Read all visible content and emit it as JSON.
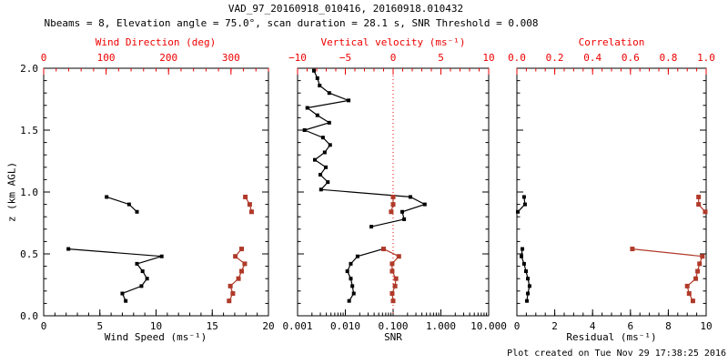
{
  "title": "VAD_97_20160918_010416, 20160918.010432",
  "subtitle": "Nbeams = 8, Elevation angle = 75.0°, scan duration = 28.1 s, SNR Threshold = 0.008",
  "footer": "Plot created on Tue Nov 29 17:38:25 2016",
  "colors": {
    "black": "#000000",
    "red_axis": "#ee0000",
    "red_data": "#b03a2a",
    "background": "#ffffff"
  },
  "y_axis": {
    "label": "z (km AGL)",
    "range": [
      0,
      2
    ],
    "major_ticks": [
      0.0,
      0.5,
      1.0,
      1.5,
      2.0
    ],
    "tick_labels": [
      "0.0",
      "0.5",
      "1.0",
      "1.5",
      "2.0"
    ],
    "minor_step": 0.1
  },
  "chart_data": [
    {
      "id": "wind-panel",
      "type": "scatter",
      "bottom_axis": {
        "label": "Wind Speed (ms⁻¹)",
        "scale": "linear",
        "range": [
          0,
          20
        ],
        "major_ticks": [
          0,
          5,
          10,
          15,
          20
        ],
        "tick_labels": [
          "0",
          "5",
          "10",
          "15",
          "20"
        ],
        "minor_step": 1
      },
      "top_axis": {
        "label": "Wind Direction (deg)",
        "scale": "linear",
        "range": [
          0,
          360
        ],
        "major_ticks": [
          0,
          100,
          200,
          300
        ],
        "tick_labels": [
          "0",
          "100",
          "200",
          "300"
        ],
        "minor_step": 20
      },
      "series": [
        {
          "name": "wind-speed",
          "axis": "bottom",
          "color": "black",
          "segments": [
            {
              "z": [
                0.96,
                0.9,
                0.84
              ],
              "values": [
                5.6,
                7.6,
                8.3
              ]
            },
            {
              "z": [
                0.54,
                0.48,
                0.42,
                0.36,
                0.3,
                0.24,
                0.18,
                0.12
              ],
              "values": [
                2.2,
                10.5,
                8.3,
                8.8,
                9.2,
                8.7,
                7.0,
                7.3
              ]
            }
          ]
        },
        {
          "name": "wind-direction",
          "axis": "top",
          "color": "red",
          "segments": [
            {
              "z": [
                0.96,
                0.9,
                0.84
              ],
              "values": [
                323,
                330,
                333
              ]
            },
            {
              "z": [
                0.54,
                0.48,
                0.42,
                0.36,
                0.3,
                0.24,
                0.18,
                0.12
              ],
              "values": [
                317,
                307,
                322,
                317,
                312,
                299,
                303,
                297
              ]
            }
          ]
        }
      ]
    },
    {
      "id": "snr-panel",
      "type": "scatter",
      "bottom_axis": {
        "label": "SNR",
        "scale": "log",
        "range": [
          0.001,
          10
        ],
        "major_ticks": [
          0.001,
          0.01,
          0.1,
          1,
          10
        ],
        "tick_labels": [
          "0.001",
          "0.010",
          "0.100",
          "1.000",
          "10.000"
        ]
      },
      "top_axis": {
        "label": "Vertical velocity (ms⁻¹)",
        "scale": "linear",
        "range": [
          -10,
          10
        ],
        "major_ticks": [
          -10,
          -5,
          0,
          5,
          10
        ],
        "tick_labels": [
          "−10",
          "−5",
          "0",
          "5",
          "10"
        ],
        "minor_step": 1,
        "zero_line": true
      },
      "series": [
        {
          "name": "snr",
          "axis": "bottom",
          "color": "black",
          "segments": [
            {
              "z": [
                1.98,
                1.92,
                1.86,
                1.8,
                1.74,
                1.68,
                1.62,
                1.56,
                1.5,
                1.44,
                1.38,
                1.32,
                1.26,
                1.2,
                1.14,
                1.08,
                1.02,
                0.96,
                0.9,
                0.84,
                0.78,
                0.72
              ],
              "values": [
                0.0022,
                0.0026,
                0.0029,
                0.0046,
                0.0117,
                0.0016,
                0.0026,
                0.0046,
                0.0014,
                0.0034,
                0.0048,
                0.0037,
                0.0023,
                0.0039,
                0.003,
                0.0043,
                0.0031,
                0.23,
                0.46,
                0.155,
                0.17,
                0.035
              ]
            },
            {
              "z": [
                0.54,
                0.48,
                0.42,
                0.36,
                0.3,
                0.24,
                0.18,
                0.12
              ],
              "values": [
                0.062,
                0.018,
                0.013,
                0.011,
                0.013,
                0.014,
                0.015,
                0.012
              ]
            }
          ]
        },
        {
          "name": "vertical-velocity",
          "axis": "top",
          "color": "red",
          "segments": [
            {
              "z": [
                0.96,
                0.9,
                0.84
              ],
              "values": [
                0.0,
                0.0,
                -0.2
              ]
            },
            {
              "z": [
                0.54,
                0.48,
                0.42,
                0.36,
                0.3,
                0.24,
                0.18,
                0.12
              ],
              "values": [
                -1.0,
                0.6,
                -0.1,
                -0.1,
                0.3,
                0.2,
                -0.1,
                0.0
              ]
            }
          ]
        }
      ]
    },
    {
      "id": "residual-panel",
      "type": "scatter",
      "bottom_axis": {
        "label": "Residual (ms⁻¹)",
        "scale": "linear",
        "range": [
          0,
          10
        ],
        "major_ticks": [
          0,
          2,
          4,
          6,
          8,
          10
        ],
        "tick_labels": [
          "0",
          "2",
          "4",
          "6",
          "8",
          "10"
        ],
        "minor_step": 0.5
      },
      "top_axis": {
        "label": "Correlation",
        "scale": "linear",
        "range": [
          0,
          1
        ],
        "major_ticks": [
          0.0,
          0.2,
          0.4,
          0.6,
          0.8,
          1.0
        ],
        "tick_labels": [
          "0.0",
          "0.2",
          "0.4",
          "0.6",
          "0.8",
          "1.0"
        ],
        "minor_step": 0.05
      },
      "series": [
        {
          "name": "residual",
          "axis": "bottom",
          "color": "black",
          "segments": [
            {
              "z": [
                0.96,
                0.9,
                0.84
              ],
              "values": [
                0.38,
                0.43,
                0.05
              ]
            },
            {
              "z": [
                0.54,
                0.48,
                0.42,
                0.36,
                0.3,
                0.24,
                0.18,
                0.12
              ],
              "values": [
                0.29,
                0.24,
                0.38,
                0.48,
                0.58,
                0.67,
                0.58,
                0.53
              ]
            }
          ]
        },
        {
          "name": "correlation",
          "axis": "top",
          "color": "red",
          "segments": [
            {
              "z": [
                0.96,
                0.9,
                0.84
              ],
              "values": [
                0.96,
                0.96,
                0.995
              ]
            },
            {
              "z": [
                0.54,
                0.48,
                0.42,
                0.36,
                0.3,
                0.24,
                0.18,
                0.12
              ],
              "values": [
                0.61,
                0.98,
                0.965,
                0.955,
                0.945,
                0.9,
                0.91,
                0.93
              ]
            }
          ]
        }
      ]
    }
  ]
}
